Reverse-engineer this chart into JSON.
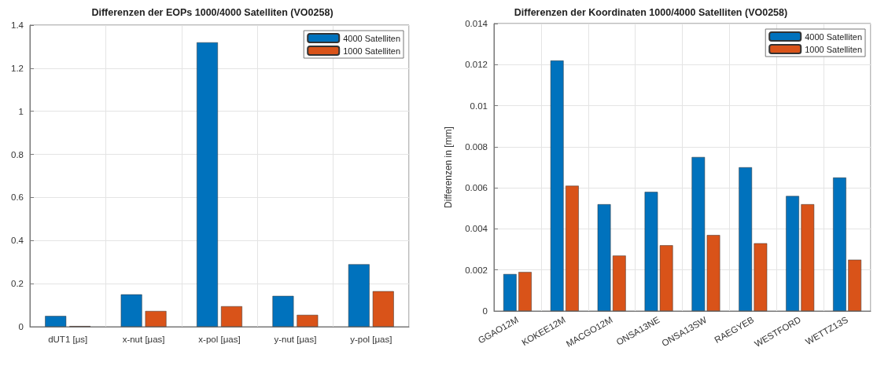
{
  "chart_data": [
    {
      "type": "bar",
      "title": "Differenzen der EOPs 1000/4000 Satelliten (VO0258)",
      "categories": [
        "dUT1 [μs]",
        "x-nut [μas]",
        "x-pol [μas]",
        "y-nut [μas]",
        "y-pol [μas]"
      ],
      "series": [
        {
          "name": "4000 Satelliten",
          "color": "#0072bd",
          "values": [
            0.05,
            0.15,
            1.32,
            0.143,
            0.29
          ]
        },
        {
          "name": "1000 Satelliten",
          "color": "#d95319",
          "values": [
            0.003,
            0.073,
            0.095,
            0.055,
            0.165
          ]
        }
      ],
      "ylim": [
        0,
        1.4
      ],
      "yticks": [
        0,
        0.2,
        0.4,
        0.6,
        0.8,
        1,
        1.2,
        1.4
      ],
      "grid": true,
      "legend": "top right"
    },
    {
      "type": "bar",
      "title": "Differenzen der Koordinaten 1000/4000 Satelliten (VO0258)",
      "ylabel": "Differenzen in [mm]",
      "categories": [
        "GGAO12M",
        "KOKEE12M",
        "MACGO12M",
        "ONSA13NE",
        "ONSA13SW",
        "RAEGYEB",
        "WESTFORD",
        "WETTZ13S"
      ],
      "series": [
        {
          "name": "4000 Satelliten",
          "color": "#0072bd",
          "values": [
            0.0018,
            0.0122,
            0.0052,
            0.0058,
            0.0075,
            0.007,
            0.0056,
            0.0065
          ]
        },
        {
          "name": "1000 Satelliten",
          "color": "#d95319",
          "values": [
            0.0019,
            0.0061,
            0.0027,
            0.0032,
            0.0037,
            0.0033,
            0.0052,
            0.0025
          ]
        }
      ],
      "ylim": [
        0,
        0.014
      ],
      "yticks": [
        0,
        0.002,
        0.004,
        0.006,
        0.008,
        0.01,
        0.012,
        0.014
      ],
      "grid": true,
      "legend": "top right"
    }
  ]
}
